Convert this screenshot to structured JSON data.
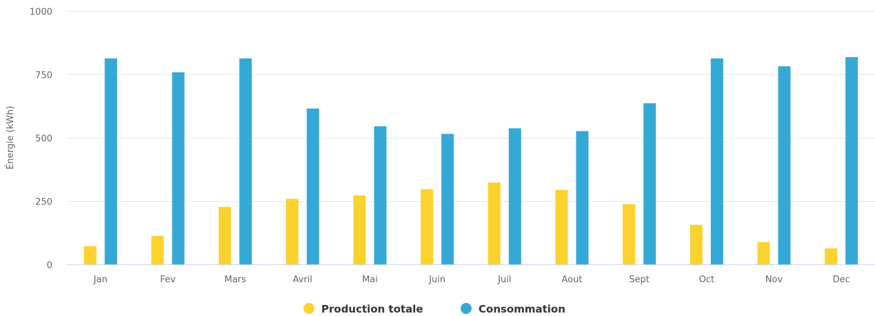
{
  "chart_data": {
    "type": "bar",
    "title": "",
    "xlabel": "",
    "ylabel": "Énergie (kWh)",
    "ylim": [
      0,
      1000
    ],
    "yticks": [
      0,
      250,
      500,
      750,
      1000
    ],
    "categories": [
      "Jan",
      "Fev",
      "Mars",
      "Avril",
      "Mai",
      "Juin",
      "Juil",
      "Aout",
      "Sept",
      "Oct",
      "Nov",
      "Dec"
    ],
    "series": [
      {
        "name": "Production totale",
        "color": "#FCD22F",
        "values": [
          72,
          112,
          227,
          259,
          272,
          297,
          323,
          294,
          238,
          156,
          88,
          63
        ]
      },
      {
        "name": "Consommation",
        "color": "#35A9D6",
        "values": [
          813,
          758,
          813,
          615,
          545,
          515,
          537,
          526,
          636,
          813,
          782,
          818
        ]
      }
    ],
    "grid": true,
    "legend_position": "bottom-center"
  }
}
